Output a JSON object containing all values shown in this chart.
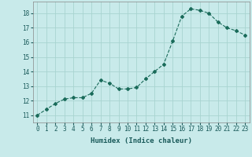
{
  "xlabel": "Humidex (Indice chaleur)",
  "x": [
    0,
    1,
    2,
    3,
    4,
    5,
    6,
    7,
    8,
    9,
    10,
    11,
    12,
    13,
    14,
    15,
    16,
    17,
    18,
    19,
    20,
    21,
    22,
    23
  ],
  "y": [
    11.0,
    11.4,
    11.8,
    12.1,
    12.2,
    12.2,
    12.5,
    13.4,
    13.2,
    12.8,
    12.8,
    12.9,
    13.5,
    14.0,
    14.5,
    16.1,
    17.8,
    18.3,
    18.2,
    18.0,
    17.4,
    17.0,
    16.8,
    16.5
  ],
  "ylim": [
    10.5,
    18.8
  ],
  "yticks": [
    11,
    12,
    13,
    14,
    15,
    16,
    17,
    18
  ],
  "xticks": [
    0,
    1,
    2,
    3,
    4,
    5,
    6,
    7,
    8,
    9,
    10,
    11,
    12,
    13,
    14,
    15,
    16,
    17,
    18,
    19,
    20,
    21,
    22,
    23
  ],
  "line_color": "#1a6b5a",
  "marker": "D",
  "marker_size": 2.0,
  "bg_color": "#c8eaea",
  "grid_color": "#a8d4d0",
  "xlabel_fontsize": 6.5,
  "tick_fontsize": 5.5
}
